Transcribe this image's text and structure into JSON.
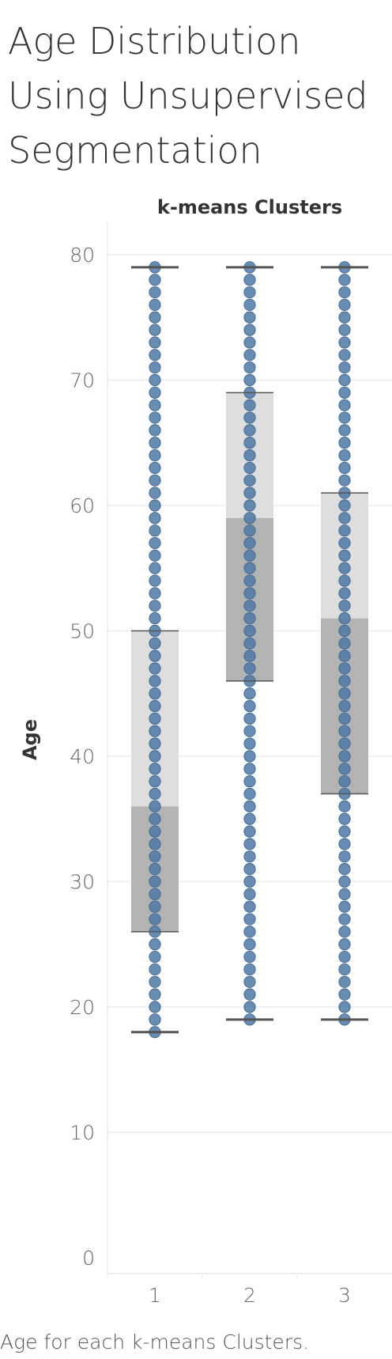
{
  "title_lines": [
    "Age Distribution",
    "Using Unsupervised",
    "Segmentation"
  ],
  "caption": "Age for each k-means Clusters.",
  "colors": {
    "dot": "#4e79a7",
    "dot_edge": "#3b5f88",
    "box_upper": "#dedede",
    "box_lower": "#b3b3b3",
    "whisker": "#555555",
    "grid": "#ececec",
    "axis_text": "#666666",
    "header_text": "#333333"
  },
  "chart_data": {
    "type": "box",
    "header": "k-means Clusters",
    "xlabel": "",
    "ylabel": "Age",
    "categories": [
      "1",
      "2",
      "3"
    ],
    "ylim": [
      0,
      80
    ],
    "yticks": [
      0,
      10,
      20,
      30,
      40,
      50,
      60,
      70,
      80
    ],
    "grid": true,
    "boxes": [
      {
        "category": "1",
        "min": 18,
        "q1": 26,
        "median": 36,
        "q3": 50,
        "max": 79
      },
      {
        "category": "2",
        "min": 19,
        "q1": 46,
        "median": 59,
        "q3": 69,
        "max": 79
      },
      {
        "category": "3",
        "min": 19,
        "q1": 37,
        "median": 51,
        "q3": 61,
        "max": 79
      }
    ],
    "points": "one point per integer age from min to max in each cluster"
  }
}
